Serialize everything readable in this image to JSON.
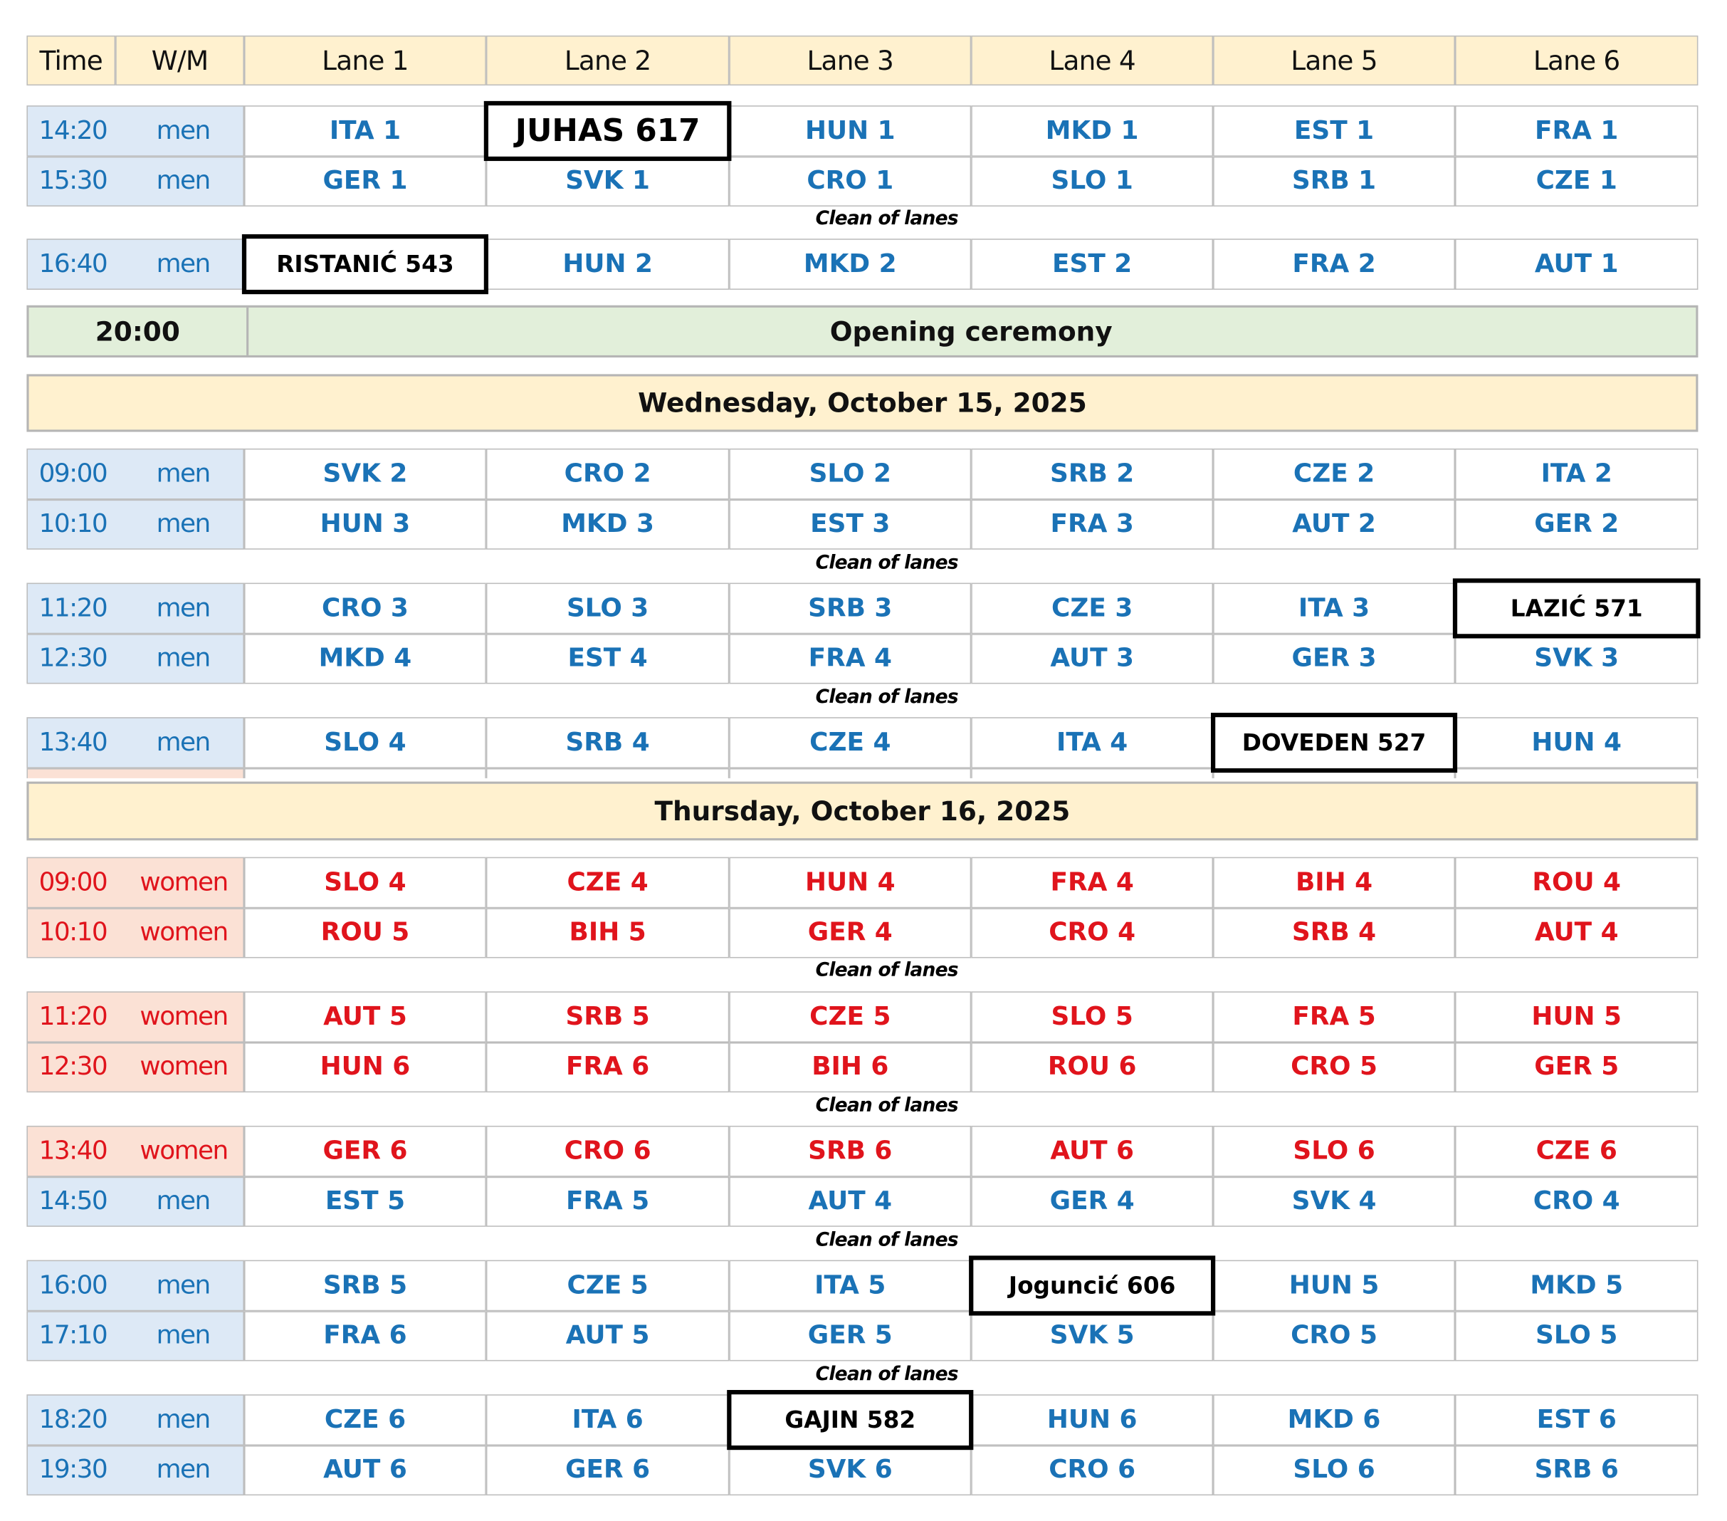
{
  "colors": {
    "men": "#1a72b6",
    "women": "#e0141c",
    "header_bg": "#fff1cf",
    "men_bg": "#dde9f6",
    "women_bg": "#fbe1d5",
    "event_bg": "#e2efda"
  },
  "header": {
    "time": "Time",
    "wm": "W/M",
    "lanes": [
      "Lane 1",
      "Lane 2",
      "Lane 3",
      "Lane 4",
      "Lane 5",
      "Lane 6"
    ]
  },
  "items": [
    {
      "type": "block",
      "rows": [
        {
          "time": "14:20",
          "group": "men",
          "lanes": [
            "ITA 1",
            "JUHAS 617",
            "HUN 1",
            "MKD 1",
            "EST 1",
            "FRA 1"
          ]
        },
        {
          "time": "15:30",
          "group": "men",
          "lanes": [
            "GER 1",
            "SVK 1",
            "CRO 1",
            "SLO 1",
            "SRB 1",
            "CZE 1"
          ]
        }
      ],
      "boxed": [
        {
          "row": 0,
          "lane": 1
        }
      ]
    },
    {
      "type": "clean",
      "text": "Clean of lanes"
    },
    {
      "type": "block",
      "rows": [
        {
          "time": "16:40",
          "group": "men",
          "lanes": [
            "RISTANIĆ 543",
            "HUN 2",
            "MKD 2",
            "EST 2",
            "FRA 2",
            "AUT 1"
          ]
        }
      ],
      "boxed": [
        {
          "row": 0,
          "lane": 0
        }
      ]
    },
    {
      "type": "event",
      "time": "20:00",
      "label": "Opening ceremony"
    },
    {
      "type": "day",
      "label": "Wednesday, October 15, 2025"
    },
    {
      "type": "block",
      "rows": [
        {
          "time": "09:00",
          "group": "men",
          "lanes": [
            "SVK 2",
            "CRO 2",
            "SLO 2",
            "SRB 2",
            "CZE 2",
            "ITA 2"
          ]
        },
        {
          "time": "10:10",
          "group": "men",
          "lanes": [
            "HUN 3",
            "MKD 3",
            "EST 3",
            "FRA 3",
            "AUT 2",
            "GER 2"
          ]
        }
      ],
      "boxed": []
    },
    {
      "type": "clean",
      "text": "Clean of lanes"
    },
    {
      "type": "block",
      "rows": [
        {
          "time": "11:20",
          "group": "men",
          "lanes": [
            "CRO 3",
            "SLO 3",
            "SRB 3",
            "CZE 3",
            "ITA 3",
            "LAZIĆ  571"
          ]
        },
        {
          "time": "12:30",
          "group": "men",
          "lanes": [
            "MKD 4",
            "EST 4",
            "FRA 4",
            "AUT 3",
            "GER 3",
            "SVK 3"
          ]
        }
      ],
      "boxed": [
        {
          "row": 0,
          "lane": 5
        }
      ]
    },
    {
      "type": "clean",
      "text": "Clean of lanes"
    },
    {
      "type": "block",
      "rows": [
        {
          "time": "13:40",
          "group": "men",
          "lanes": [
            "SLO 4",
            "SRB 4",
            "CZE 4",
            "ITA 4",
            "DOVEDEN 527",
            "HUN 4"
          ]
        }
      ],
      "boxed": [
        {
          "row": 0,
          "lane": 4
        }
      ]
    },
    {
      "type": "day",
      "label": "Thursday, October 16, 2025"
    },
    {
      "type": "block",
      "rows": [
        {
          "time": "09:00",
          "group": "women",
          "lanes": [
            "SLO 4",
            "CZE 4",
            "HUN 4",
            "FRA 4",
            "BIH 4",
            "ROU 4"
          ]
        },
        {
          "time": "10:10",
          "group": "women",
          "lanes": [
            "ROU 5",
            "BIH 5",
            "GER 4",
            "CRO 4",
            "SRB 4",
            "AUT 4"
          ]
        }
      ],
      "boxed": []
    },
    {
      "type": "clean",
      "text": "Clean of lanes"
    },
    {
      "type": "block",
      "rows": [
        {
          "time": "11:20",
          "group": "women",
          "lanes": [
            "AUT 5",
            "SRB 5",
            "CZE 5",
            "SLO 5",
            "FRA 5",
            "HUN 5"
          ]
        },
        {
          "time": "12:30",
          "group": "women",
          "lanes": [
            "HUN 6",
            "FRA 6",
            "BIH 6",
            "ROU 6",
            "CRO 5",
            "GER 5"
          ]
        }
      ],
      "boxed": []
    },
    {
      "type": "clean",
      "text": "Clean of lanes"
    },
    {
      "type": "block",
      "rows": [
        {
          "time": "13:40",
          "group": "women",
          "lanes": [
            "GER 6",
            "CRO 6",
            "SRB 6",
            "AUT 6",
            "SLO 6",
            "CZE 6"
          ]
        },
        {
          "time": "14:50",
          "group": "men",
          "lanes": [
            "EST 5",
            "FRA 5",
            "AUT 4",
            "GER 4",
            "SVK 4",
            "CRO 4"
          ]
        }
      ],
      "boxed": []
    },
    {
      "type": "clean",
      "text": "Clean of lanes"
    },
    {
      "type": "block",
      "rows": [
        {
          "time": "16:00",
          "group": "men",
          "lanes": [
            "SRB 5",
            "CZE 5",
            "ITA 5",
            "Joguncić 606",
            "HUN 5",
            "MKD 5"
          ]
        },
        {
          "time": "17:10",
          "group": "men",
          "lanes": [
            "FRA 6",
            "AUT 5",
            "GER 5",
            "SVK 5",
            "CRO 5",
            "SLO 5"
          ]
        }
      ],
      "boxed": [
        {
          "row": 0,
          "lane": 3
        }
      ]
    },
    {
      "type": "clean",
      "text": "Clean of lanes"
    },
    {
      "type": "block",
      "rows": [
        {
          "time": "18:20",
          "group": "men",
          "lanes": [
            "CZE 6",
            "ITA 6",
            "GAJIN 582",
            "HUN 6",
            "MKD 6",
            "EST 6"
          ]
        },
        {
          "time": "19:30",
          "group": "men",
          "lanes": [
            "AUT 6",
            "GER 6",
            "SVK 6",
            "CRO 6",
            "SLO 6",
            "SRB 6"
          ]
        }
      ],
      "boxed": [
        {
          "row": 0,
          "lane": 2
        }
      ]
    }
  ]
}
